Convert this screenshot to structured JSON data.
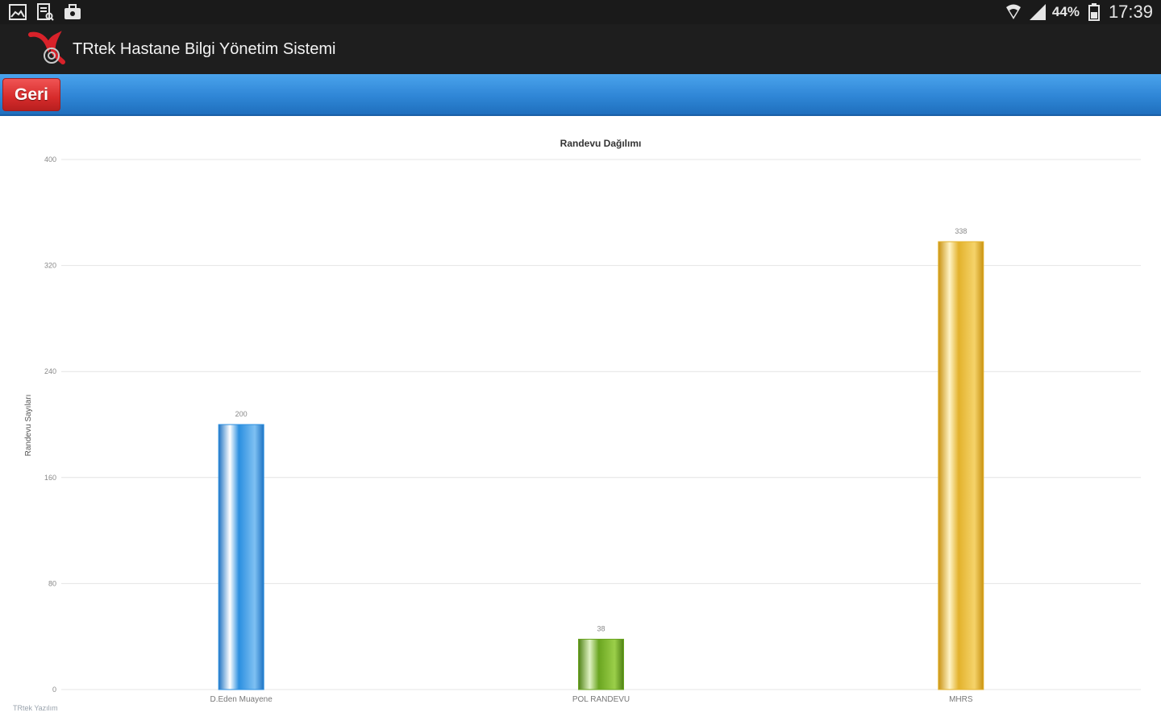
{
  "status_bar": {
    "battery": "44%",
    "clock": "17:39",
    "left_icons": [
      "gallery-icon",
      "document-icon",
      "briefcase-icon"
    ],
    "right_icons": [
      "wifi-icon",
      "signal-icon",
      "battery-icon"
    ]
  },
  "app": {
    "title": "TRtek Hastane Bilgi Yönetim Sistemi",
    "logo_icon": "trtek-logo-icon"
  },
  "toolbar": {
    "back_label": "Geri",
    "colors": {
      "bar": "#2f86d6",
      "button": "#d62b2b"
    }
  },
  "chart_data": {
    "type": "bar",
    "title": "Randevu Dağılımı",
    "xlabel": "",
    "ylabel": "Randevu Sayıları",
    "ylim": [
      0,
      400
    ],
    "yticks": [
      0,
      80,
      160,
      240,
      320,
      400
    ],
    "grid": true,
    "categories": [
      "D.Eden Muayene",
      "POL RANDEVU",
      "MHRS"
    ],
    "values": [
      200,
      38,
      338
    ],
    "colors": [
      "#2b8fe0",
      "#6aa520",
      "#e3b22c"
    ]
  },
  "footer": {
    "note": "TRtek Yazılım"
  }
}
